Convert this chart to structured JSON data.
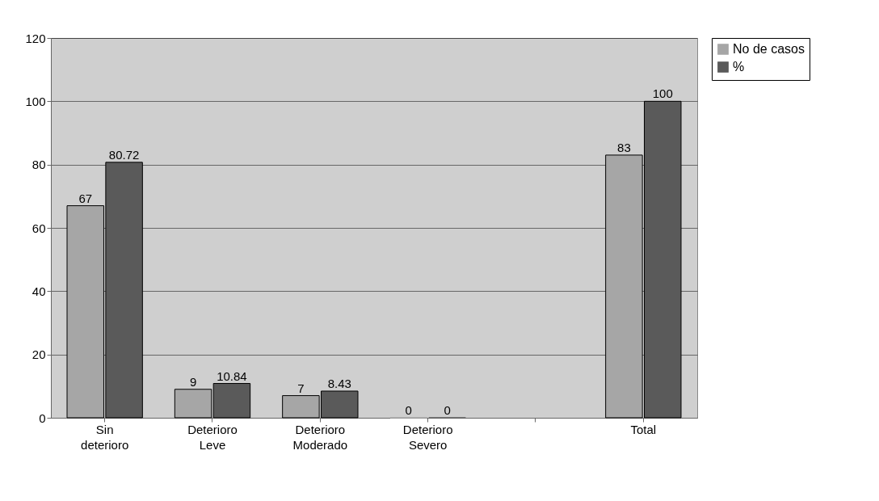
{
  "chart_data": {
    "type": "bar",
    "categories": [
      "Sin deterioro",
      "Deterioro Leve",
      "Deterioro Moderado",
      "Deterioro Severo",
      null,
      "Total"
    ],
    "series": [
      {
        "name": "No de casos",
        "color": "#a6a6a6",
        "values": [
          67,
          9,
          7,
          0,
          null,
          83
        ]
      },
      {
        "name": "%",
        "color": "#5a5a5a",
        "values": [
          80.72,
          10.84,
          8.43,
          0,
          null,
          100
        ]
      }
    ],
    "ylim": [
      0,
      120
    ],
    "yticks": [
      0,
      20,
      40,
      60,
      80,
      100,
      120
    ],
    "grid": "y",
    "legend": "right",
    "data_labels": true
  }
}
